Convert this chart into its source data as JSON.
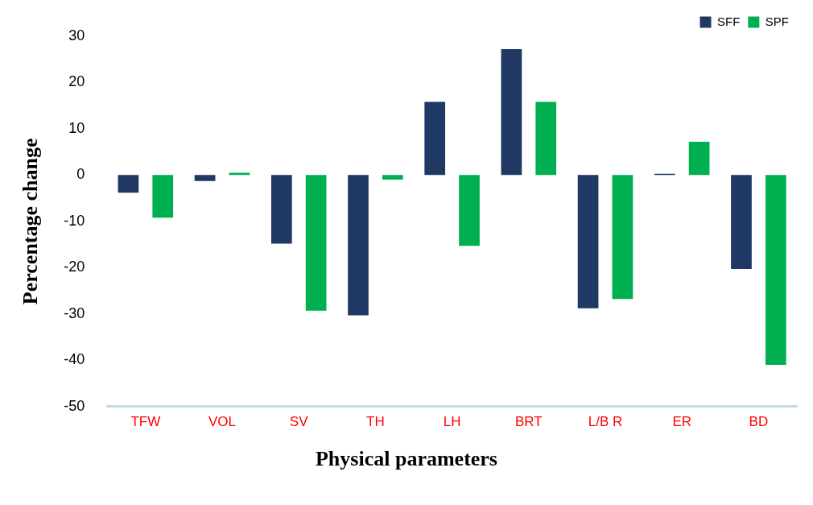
{
  "chart_data": {
    "type": "bar",
    "xlabel": "Physical parameters",
    "ylabel": "Percentage change",
    "categories": [
      "TFW",
      "VOL",
      "SV",
      "TH",
      "LH",
      "BRT",
      "L/B R",
      "ER",
      "BD"
    ],
    "series": [
      {
        "name": "SFF",
        "color": "#1f3864",
        "values": [
          -3.8,
          -1.3,
          -14.8,
          -30.3,
          15.8,
          27.2,
          -28.8,
          0.3,
          -20.3
        ]
      },
      {
        "name": "SPF",
        "color": "#00b050",
        "values": [
          -9.2,
          0.5,
          -29.3,
          -1,
          -15.3,
          15.8,
          -26.8,
          7.2,
          -41
        ]
      }
    ],
    "ylim": [
      -50,
      30
    ],
    "yticks": [
      -50,
      -40,
      -30,
      -20,
      -10,
      0,
      10,
      20,
      30
    ],
    "grid": false,
    "legend": "top right"
  }
}
